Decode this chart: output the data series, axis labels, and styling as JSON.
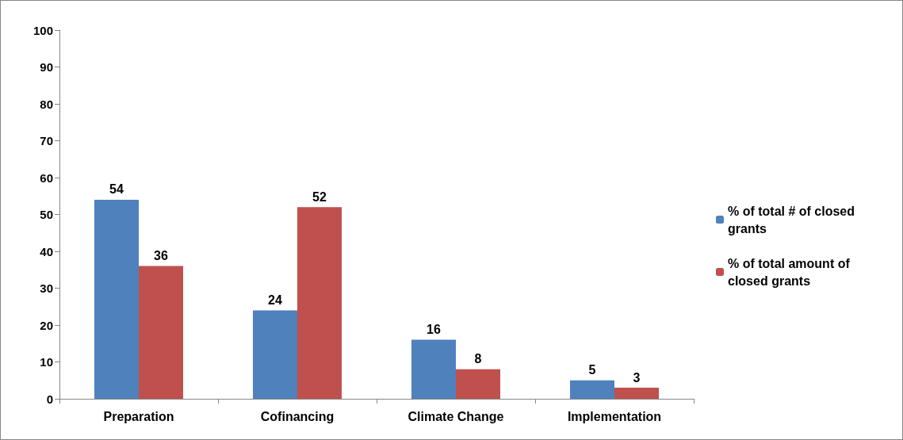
{
  "chart_data": {
    "type": "bar",
    "categories": [
      "Preparation",
      "Cofinancing",
      "Climate Change",
      "Implementation"
    ],
    "series": [
      {
        "name": "% of total # of closed grants",
        "color": "#4f81bd",
        "values": [
          54,
          24,
          16,
          5
        ]
      },
      {
        "name": "% of total amount of closed grants",
        "color": "#c0504d",
        "values": [
          36,
          52,
          8,
          3
        ]
      }
    ],
    "ylim": [
      0,
      100
    ],
    "yticks": [
      0,
      10,
      20,
      30,
      40,
      50,
      60,
      70,
      80,
      90,
      100
    ],
    "grid": false,
    "legend": "right",
    "data_labels": true
  }
}
